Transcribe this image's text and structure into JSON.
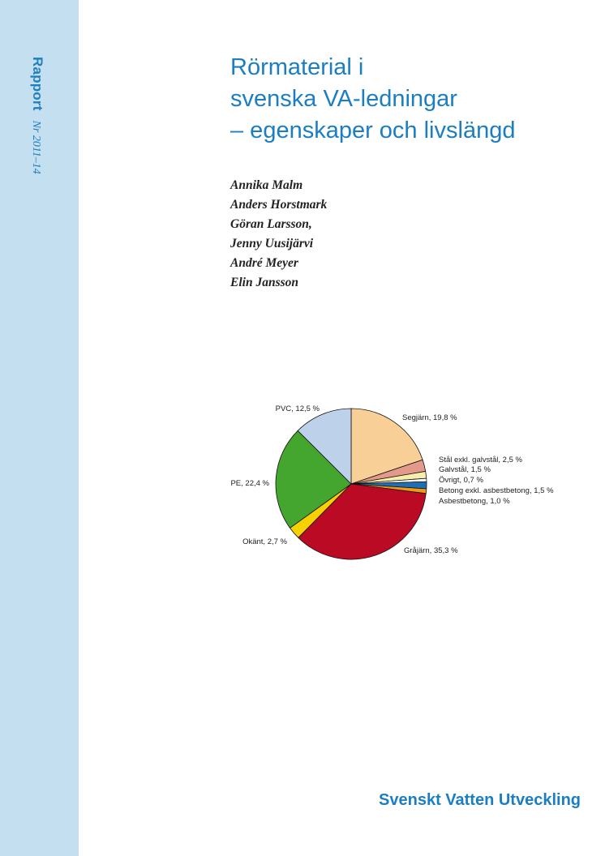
{
  "sidebar": {
    "series_label": "Rapport",
    "report_number": "Nr 2011–14"
  },
  "title": {
    "line1": "Rörmaterial i",
    "line2": "svenska VA-ledningar",
    "line3": "– egenskaper och livslängd"
  },
  "authors": [
    "Annika Malm",
    "Anders Horstmark",
    "Göran Larsson,",
    "Jenny Uusijärvi",
    "André Meyer",
    "Elin Jansson"
  ],
  "publisher": "Svenskt Vatten Utveckling",
  "chart_data": {
    "type": "pie",
    "slices": [
      {
        "label": "Segjärn, 19,8 %",
        "value": 19.8,
        "color": "#f9cf98"
      },
      {
        "label": "Stål exkl. galvstål, 2,5 %",
        "value": 2.5,
        "color": "#e49a8a"
      },
      {
        "label": "Galvstål, 1,5 %",
        "value": 1.5,
        "color": "#f6eeaa"
      },
      {
        "label": "Övrigt, 0,7 %",
        "value": 0.7,
        "color": "#ffffff"
      },
      {
        "label": "Betong exkl. asbestbetong, 1,5 %",
        "value": 1.5,
        "color": "#1f6fb4"
      },
      {
        "label": "Asbestbetong, 1,0 %",
        "value": 1.0,
        "color": "#ef9b18"
      },
      {
        "label": "Gråjärn, 35,3 %",
        "value": 35.3,
        "color": "#bb0a24"
      },
      {
        "label": "Okänt, 2,7 %",
        "value": 2.7,
        "color": "#f7d000"
      },
      {
        "label": "PE, 22,4 %",
        "value": 22.4,
        "color": "#44a62e"
      },
      {
        "label": "PVC, 12,5 %",
        "value": 12.5,
        "color": "#bdd2ea"
      }
    ]
  }
}
